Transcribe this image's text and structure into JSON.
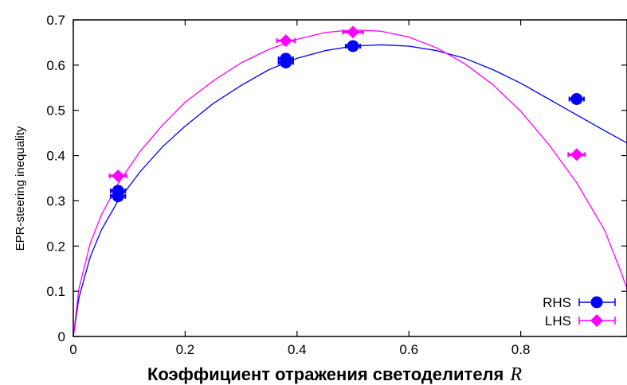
{
  "chart_data": {
    "type": "scatter",
    "ylabel": "EPR-steering inequality",
    "xlabel": "Коэффициент отражения светоделителя",
    "xlabel_var": "R",
    "xlim": [
      0,
      0.99
    ],
    "ylim": [
      0,
      0.7
    ],
    "x_ticks": [
      "0",
      "0.2",
      "0.4",
      "0.6",
      "0.8"
    ],
    "x_tick_values": [
      0,
      0.2,
      0.4,
      0.6,
      0.8
    ],
    "y_ticks": [
      "0",
      "0.1",
      "0.2",
      "0.3",
      "0.4",
      "0.5",
      "0.6",
      "0.7"
    ],
    "y_tick_values": [
      0,
      0.1,
      0.2,
      0.3,
      0.4,
      0.5,
      0.6,
      0.7
    ],
    "grid": false,
    "legend_position": "bottom-right",
    "series": [
      {
        "name": "RHS",
        "color": "#0000ff",
        "marker": "circle",
        "points": [
          {
            "x": 0.08,
            "y": 0.322,
            "xerr": 0.013
          },
          {
            "x": 0.08,
            "y": 0.31,
            "xerr": 0.013
          },
          {
            "x": 0.38,
            "y": 0.614,
            "xerr": 0.013
          },
          {
            "x": 0.38,
            "y": 0.606,
            "xerr": 0.013
          },
          {
            "x": 0.5,
            "y": 0.642,
            "xerr": 0.013
          },
          {
            "x": 0.9,
            "y": 0.525,
            "xerr": 0.013
          }
        ],
        "fit_curve": [
          [
            0,
            0
          ],
          [
            0.01,
            0.085
          ],
          [
            0.03,
            0.175
          ],
          [
            0.05,
            0.235
          ],
          [
            0.08,
            0.3
          ],
          [
            0.12,
            0.365
          ],
          [
            0.16,
            0.42
          ],
          [
            0.2,
            0.465
          ],
          [
            0.25,
            0.515
          ],
          [
            0.3,
            0.555
          ],
          [
            0.35,
            0.59
          ],
          [
            0.4,
            0.615
          ],
          [
            0.45,
            0.632
          ],
          [
            0.5,
            0.642
          ],
          [
            0.55,
            0.645
          ],
          [
            0.6,
            0.642
          ],
          [
            0.65,
            0.632
          ],
          [
            0.7,
            0.615
          ],
          [
            0.75,
            0.59
          ],
          [
            0.8,
            0.56
          ],
          [
            0.85,
            0.525
          ],
          [
            0.9,
            0.49
          ],
          [
            0.95,
            0.455
          ],
          [
            0.99,
            0.428
          ]
        ]
      },
      {
        "name": "LHS",
        "color": "#ff00ff",
        "marker": "diamond",
        "points": [
          {
            "x": 0.08,
            "y": 0.355,
            "xerr": 0.015
          },
          {
            "x": 0.38,
            "y": 0.654,
            "xerr": 0.016
          },
          {
            "x": 0.5,
            "y": 0.673,
            "xerr": 0.018
          },
          {
            "x": 0.9,
            "y": 0.402,
            "xerr": 0.015
          }
        ],
        "fit_curve": [
          [
            0,
            0
          ],
          [
            0.01,
            0.105
          ],
          [
            0.03,
            0.205
          ],
          [
            0.05,
            0.268
          ],
          [
            0.08,
            0.338
          ],
          [
            0.12,
            0.41
          ],
          [
            0.16,
            0.468
          ],
          [
            0.2,
            0.518
          ],
          [
            0.25,
            0.565
          ],
          [
            0.3,
            0.605
          ],
          [
            0.35,
            0.635
          ],
          [
            0.4,
            0.657
          ],
          [
            0.45,
            0.672
          ],
          [
            0.5,
            0.678
          ],
          [
            0.55,
            0.675
          ],
          [
            0.6,
            0.662
          ],
          [
            0.65,
            0.638
          ],
          [
            0.7,
            0.603
          ],
          [
            0.75,
            0.557
          ],
          [
            0.8,
            0.498
          ],
          [
            0.85,
            0.425
          ],
          [
            0.9,
            0.34
          ],
          [
            0.95,
            0.235
          ],
          [
            0.98,
            0.14
          ],
          [
            0.99,
            0.105
          ]
        ]
      }
    ]
  }
}
